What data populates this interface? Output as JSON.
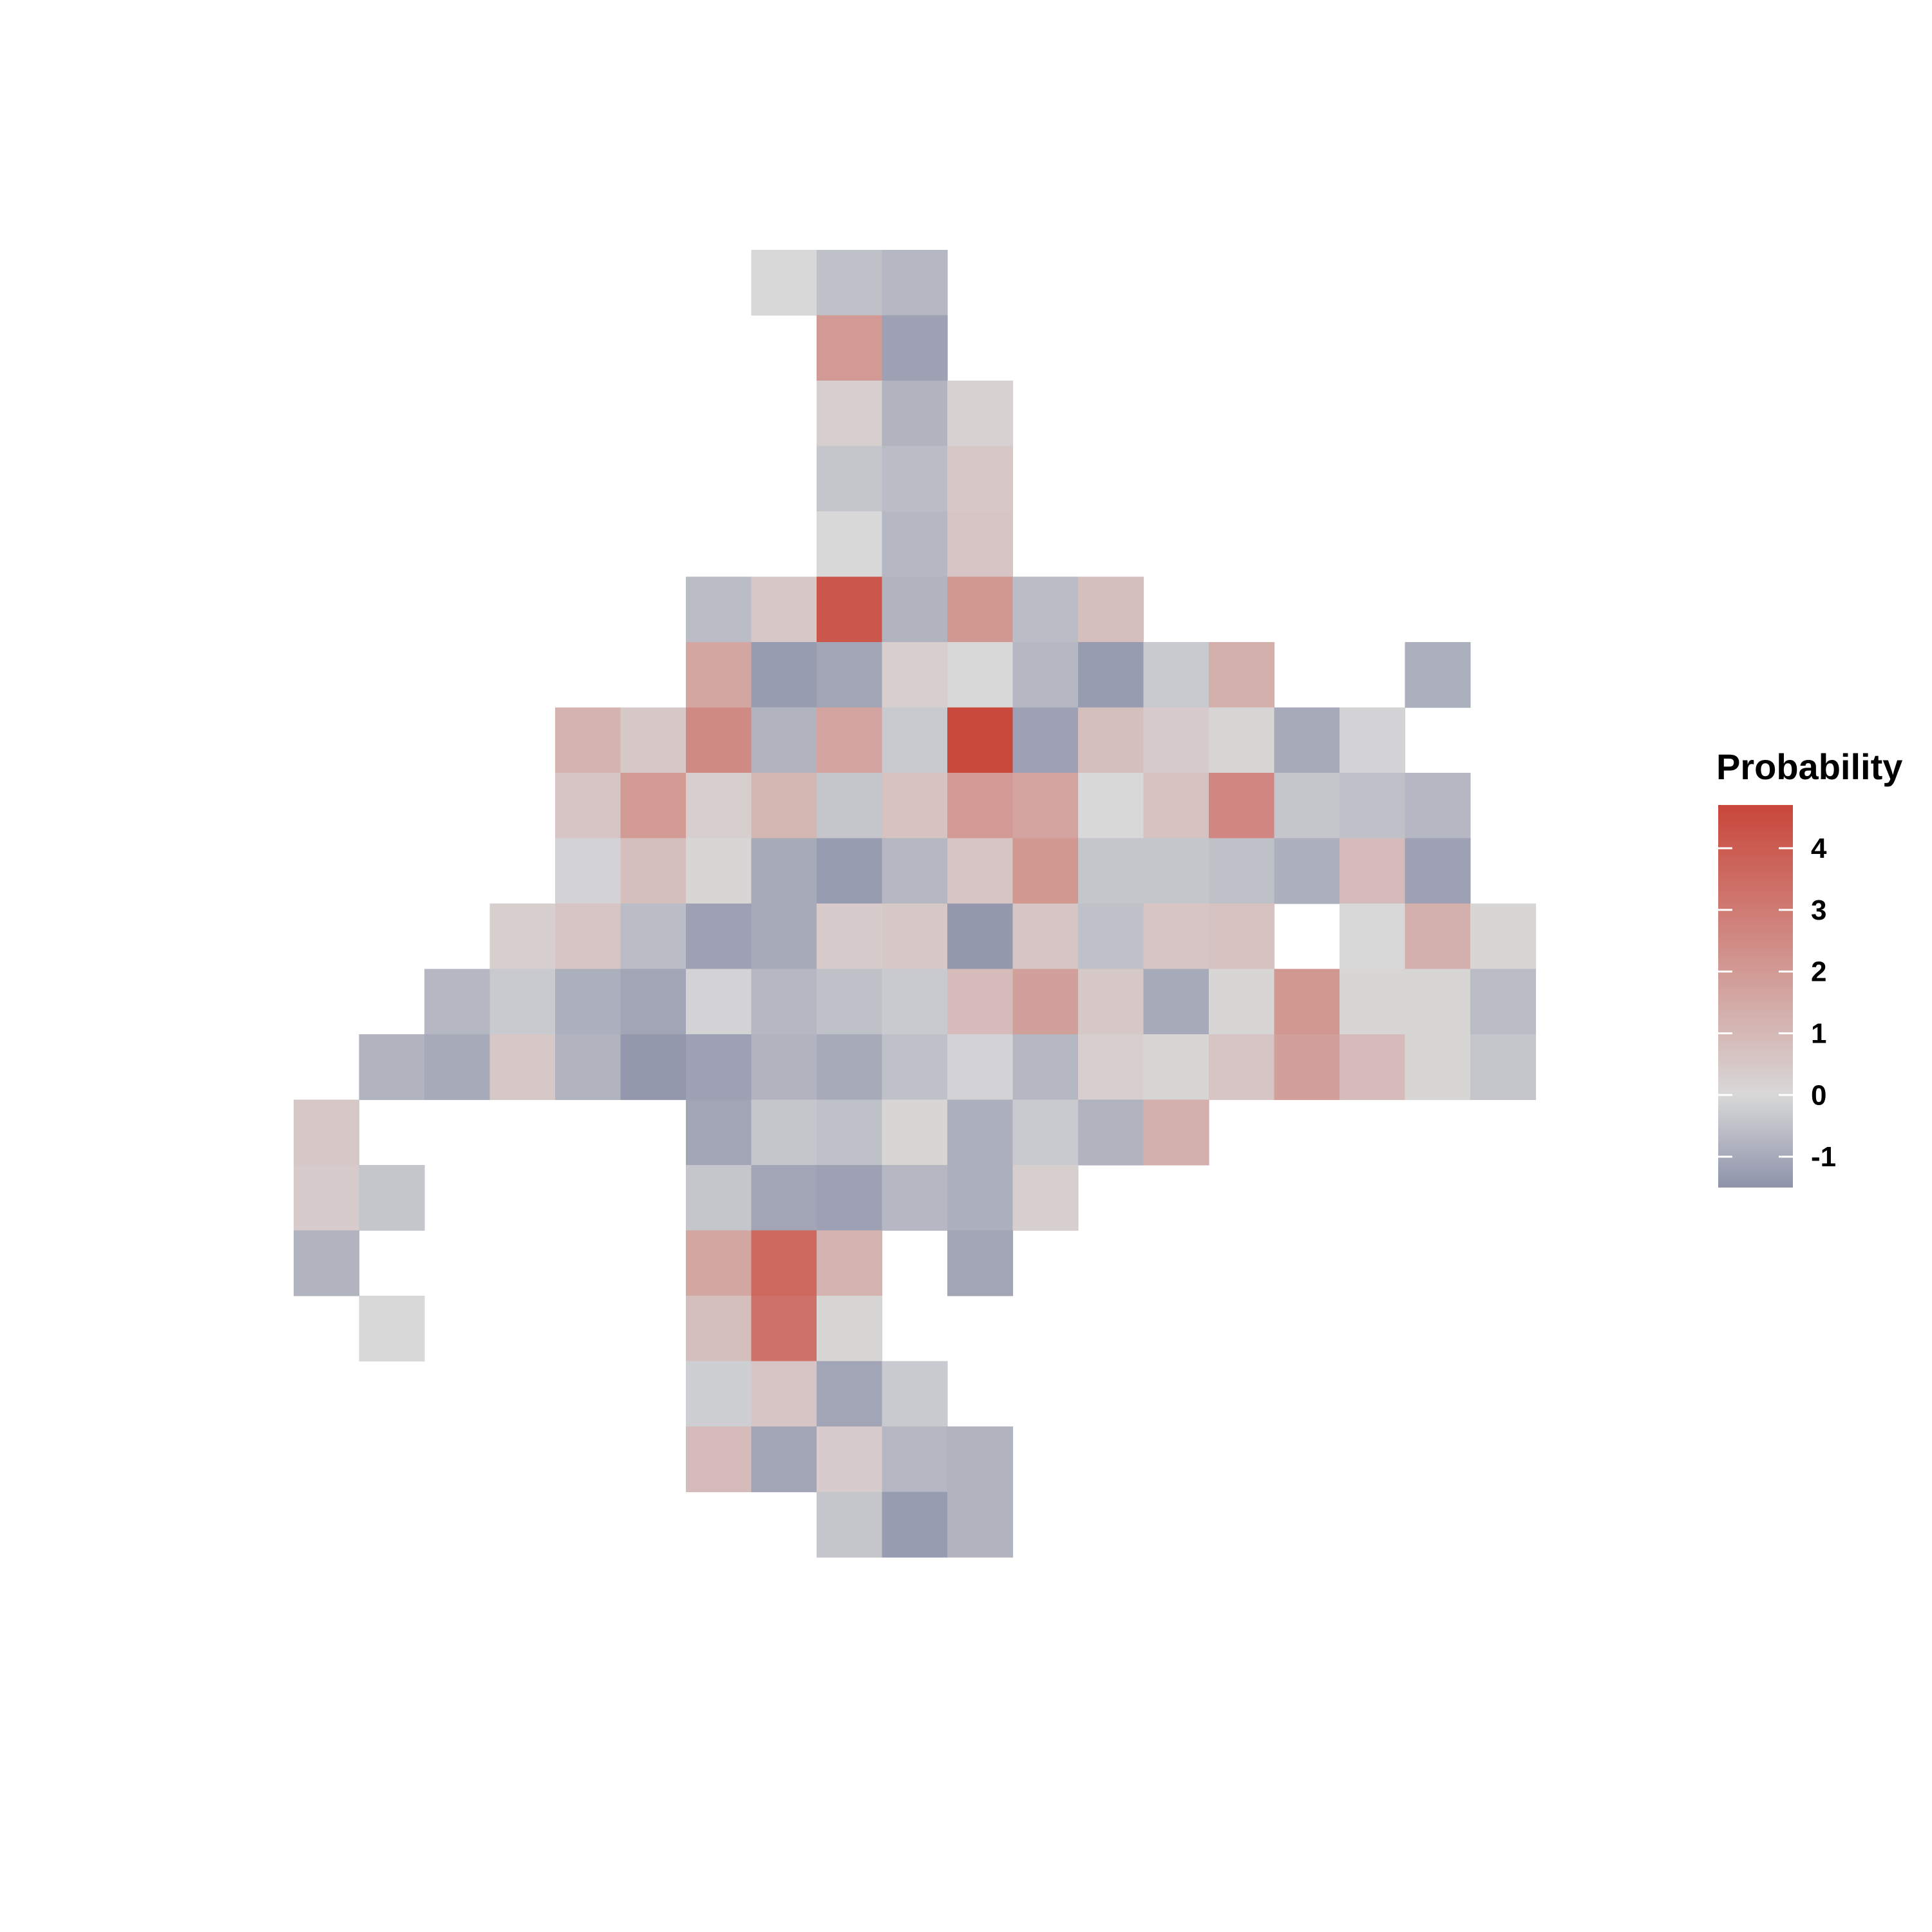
{
  "chart_data": {
    "type": "heatmap",
    "title": "",
    "xlabel": "",
    "ylabel": "",
    "grid": false,
    "legend_placement": "right",
    "n_cols": 20,
    "n_rows": 20,
    "legend": {
      "title": "Probability",
      "ticks": [
        4,
        3,
        2,
        1,
        0,
        -1
      ],
      "tick_labels": [
        "4",
        "3",
        "2",
        "1",
        "0",
        "-1"
      ],
      "min": -1.5,
      "max": 4.7
    },
    "colors": {
      "low": "#8e93aa",
      "mid": "#d8d8d8",
      "high": "#c9463a"
    },
    "cells": [
      {
        "row": 0,
        "col": 7,
        "value": 0.0
      },
      {
        "row": 0,
        "col": 8,
        "value": -0.5
      },
      {
        "row": 0,
        "col": 9,
        "value": -0.7
      },
      {
        "row": 1,
        "col": 8,
        "value": 2.0
      },
      {
        "row": 1,
        "col": 9,
        "value": -1.2
      },
      {
        "row": 2,
        "col": 8,
        "value": 0.3
      },
      {
        "row": 2,
        "col": 9,
        "value": -0.8
      },
      {
        "row": 2,
        "col": 10,
        "value": 0.2
      },
      {
        "row": 3,
        "col": 8,
        "value": -0.4
      },
      {
        "row": 3,
        "col": 9,
        "value": -0.6
      },
      {
        "row": 3,
        "col": 10,
        "value": 0.5
      },
      {
        "row": 4,
        "col": 8,
        "value": 0.0
      },
      {
        "row": 4,
        "col": 9,
        "value": -0.7
      },
      {
        "row": 4,
        "col": 10,
        "value": 0.6
      },
      {
        "row": 5,
        "col": 6,
        "value": -0.6
      },
      {
        "row": 5,
        "col": 7,
        "value": 0.5
      },
      {
        "row": 5,
        "col": 8,
        "value": 4.2
      },
      {
        "row": 5,
        "col": 9,
        "value": -0.8
      },
      {
        "row": 5,
        "col": 10,
        "value": 2.1
      },
      {
        "row": 5,
        "col": 11,
        "value": -0.6
      },
      {
        "row": 5,
        "col": 12,
        "value": 0.8
      },
      {
        "row": 6,
        "col": 6,
        "value": 1.6
      },
      {
        "row": 6,
        "col": 7,
        "value": -1.3
      },
      {
        "row": 6,
        "col": 8,
        "value": -1.1
      },
      {
        "row": 6,
        "col": 9,
        "value": 0.3
      },
      {
        "row": 6,
        "col": 10,
        "value": 0.0
      },
      {
        "row": 6,
        "col": 11,
        "value": -0.7
      },
      {
        "row": 6,
        "col": 12,
        "value": -1.3
      },
      {
        "row": 6,
        "col": 13,
        "value": -0.3
      },
      {
        "row": 6,
        "col": 14,
        "value": 1.3
      },
      {
        "row": 6,
        "col": 17,
        "value": -0.9
      },
      {
        "row": 7,
        "col": 4,
        "value": 1.2
      },
      {
        "row": 7,
        "col": 5,
        "value": 0.5
      },
      {
        "row": 7,
        "col": 6,
        "value": 2.5
      },
      {
        "row": 7,
        "col": 7,
        "value": -0.8
      },
      {
        "row": 7,
        "col": 8,
        "value": 1.7
      },
      {
        "row": 7,
        "col": 9,
        "value": -0.3
      },
      {
        "row": 7,
        "col": 10,
        "value": 4.6
      },
      {
        "row": 7,
        "col": 11,
        "value": -1.2
      },
      {
        "row": 7,
        "col": 12,
        "value": 0.8
      },
      {
        "row": 7,
        "col": 13,
        "value": 0.4
      },
      {
        "row": 7,
        "col": 14,
        "value": 0.1
      },
      {
        "row": 7,
        "col": 15,
        "value": -1.0
      },
      {
        "row": 7,
        "col": 16,
        "value": -0.1
      },
      {
        "row": 8,
        "col": 4,
        "value": 0.6
      },
      {
        "row": 8,
        "col": 5,
        "value": 2.0
      },
      {
        "row": 8,
        "col": 6,
        "value": 0.3
      },
      {
        "row": 8,
        "col": 7,
        "value": 1.1
      },
      {
        "row": 8,
        "col": 8,
        "value": -0.4
      },
      {
        "row": 8,
        "col": 9,
        "value": 0.7
      },
      {
        "row": 8,
        "col": 10,
        "value": 2.0
      },
      {
        "row": 8,
        "col": 11,
        "value": 1.7
      },
      {
        "row": 8,
        "col": 12,
        "value": 0.0
      },
      {
        "row": 8,
        "col": 13,
        "value": 0.7
      },
      {
        "row": 8,
        "col": 14,
        "value": 2.6
      },
      {
        "row": 8,
        "col": 15,
        "value": -0.4
      },
      {
        "row": 8,
        "col": 16,
        "value": -0.5
      },
      {
        "row": 8,
        "col": 17,
        "value": -0.7
      },
      {
        "row": 9,
        "col": 4,
        "value": -0.1
      },
      {
        "row": 9,
        "col": 5,
        "value": 0.8
      },
      {
        "row": 9,
        "col": 6,
        "value": 0.1
      },
      {
        "row": 9,
        "col": 7,
        "value": -1.0
      },
      {
        "row": 9,
        "col": 8,
        "value": -1.3
      },
      {
        "row": 9,
        "col": 9,
        "value": -0.7
      },
      {
        "row": 9,
        "col": 10,
        "value": 0.6
      },
      {
        "row": 9,
        "col": 11,
        "value": 2.1
      },
      {
        "row": 9,
        "col": 12,
        "value": -0.4
      },
      {
        "row": 9,
        "col": 13,
        "value": -0.4
      },
      {
        "row": 9,
        "col": 14,
        "value": -0.5
      },
      {
        "row": 9,
        "col": 15,
        "value": -0.9
      },
      {
        "row": 9,
        "col": 16,
        "value": 0.9
      },
      {
        "row": 9,
        "col": 17,
        "value": -1.2
      },
      {
        "row": 10,
        "col": 3,
        "value": 0.3
      },
      {
        "row": 10,
        "col": 4,
        "value": 0.6
      },
      {
        "row": 10,
        "col": 5,
        "value": -0.6
      },
      {
        "row": 10,
        "col": 6,
        "value": -1.2
      },
      {
        "row": 10,
        "col": 7,
        "value": -1.0
      },
      {
        "row": 10,
        "col": 8,
        "value": 0.4
      },
      {
        "row": 10,
        "col": 9,
        "value": 0.5
      },
      {
        "row": 10,
        "col": 10,
        "value": -1.4
      },
      {
        "row": 10,
        "col": 11,
        "value": 0.6
      },
      {
        "row": 10,
        "col": 12,
        "value": -0.5
      },
      {
        "row": 10,
        "col": 13,
        "value": 0.6
      },
      {
        "row": 10,
        "col": 14,
        "value": 0.7
      },
      {
        "row": 10,
        "col": 16,
        "value": 0.0
      },
      {
        "row": 10,
        "col": 17,
        "value": 1.3
      },
      {
        "row": 10,
        "col": 18,
        "value": 0.1
      },
      {
        "row": 11,
        "col": 2,
        "value": -0.7
      },
      {
        "row": 11,
        "col": 3,
        "value": -0.3
      },
      {
        "row": 11,
        "col": 4,
        "value": -0.9
      },
      {
        "row": 11,
        "col": 5,
        "value": -1.1
      },
      {
        "row": 11,
        "col": 6,
        "value": -0.1
      },
      {
        "row": 11,
        "col": 7,
        "value": -0.7
      },
      {
        "row": 11,
        "col": 8,
        "value": -0.5
      },
      {
        "row": 11,
        "col": 9,
        "value": -0.3
      },
      {
        "row": 11,
        "col": 10,
        "value": 0.9
      },
      {
        "row": 11,
        "col": 11,
        "value": 1.8
      },
      {
        "row": 11,
        "col": 12,
        "value": 0.5
      },
      {
        "row": 11,
        "col": 13,
        "value": -1.0
      },
      {
        "row": 11,
        "col": 14,
        "value": 0.1
      },
      {
        "row": 11,
        "col": 15,
        "value": 2.1
      },
      {
        "row": 11,
        "col": 16,
        "value": 0.1
      },
      {
        "row": 11,
        "col": 17,
        "value": 0.1
      },
      {
        "row": 11,
        "col": 18,
        "value": -0.6
      },
      {
        "row": 12,
        "col": 1,
        "value": -0.8
      },
      {
        "row": 12,
        "col": 2,
        "value": -1.0
      },
      {
        "row": 12,
        "col": 3,
        "value": 0.5
      },
      {
        "row": 12,
        "col": 4,
        "value": -0.8
      },
      {
        "row": 12,
        "col": 5,
        "value": -1.4
      },
      {
        "row": 12,
        "col": 6,
        "value": -1.2
      },
      {
        "row": 12,
        "col": 7,
        "value": -0.8
      },
      {
        "row": 12,
        "col": 8,
        "value": -1.0
      },
      {
        "row": 12,
        "col": 9,
        "value": -0.5
      },
      {
        "row": 12,
        "col": 10,
        "value": -0.1
      },
      {
        "row": 12,
        "col": 11,
        "value": -0.7
      },
      {
        "row": 12,
        "col": 12,
        "value": 0.3
      },
      {
        "row": 12,
        "col": 13,
        "value": 0.1
      },
      {
        "row": 12,
        "col": 14,
        "value": 0.6
      },
      {
        "row": 12,
        "col": 15,
        "value": 1.8
      },
      {
        "row": 12,
        "col": 16,
        "value": 0.9
      },
      {
        "row": 12,
        "col": 17,
        "value": 0.1
      },
      {
        "row": 12,
        "col": 18,
        "value": -0.4
      },
      {
        "row": 13,
        "col": 0,
        "value": 0.5
      },
      {
        "row": 13,
        "col": 6,
        "value": -1.1
      },
      {
        "row": 13,
        "col": 7,
        "value": -0.4
      },
      {
        "row": 13,
        "col": 8,
        "value": -0.5
      },
      {
        "row": 13,
        "col": 9,
        "value": 0.1
      },
      {
        "row": 13,
        "col": 10,
        "value": -0.9
      },
      {
        "row": 13,
        "col": 11,
        "value": -0.3
      },
      {
        "row": 13,
        "col": 12,
        "value": -0.8
      },
      {
        "row": 13,
        "col": 13,
        "value": 1.3
      },
      {
        "row": 14,
        "col": 0,
        "value": 0.4
      },
      {
        "row": 14,
        "col": 1,
        "value": -0.4
      },
      {
        "row": 14,
        "col": 6,
        "value": -0.4
      },
      {
        "row": 14,
        "col": 7,
        "value": -1.1
      },
      {
        "row": 14,
        "col": 8,
        "value": -1.2
      },
      {
        "row": 14,
        "col": 9,
        "value": -0.7
      },
      {
        "row": 14,
        "col": 10,
        "value": -0.9
      },
      {
        "row": 14,
        "col": 11,
        "value": 0.3
      },
      {
        "row": 15,
        "col": 0,
        "value": -0.8
      },
      {
        "row": 15,
        "col": 6,
        "value": 1.6
      },
      {
        "row": 15,
        "col": 7,
        "value": 3.6
      },
      {
        "row": 15,
        "col": 8,
        "value": 1.2
      },
      {
        "row": 15,
        "col": 10,
        "value": -1.1
      },
      {
        "row": 16,
        "col": 1,
        "value": 0.0
      },
      {
        "row": 16,
        "col": 6,
        "value": 0.8
      },
      {
        "row": 16,
        "col": 7,
        "value": 3.3
      },
      {
        "row": 16,
        "col": 8,
        "value": 0.1
      },
      {
        "row": 17,
        "col": 6,
        "value": -0.2
      },
      {
        "row": 17,
        "col": 7,
        "value": 0.6
      },
      {
        "row": 17,
        "col": 8,
        "value": -1.1
      },
      {
        "row": 17,
        "col": 9,
        "value": -0.3
      },
      {
        "row": 18,
        "col": 6,
        "value": 0.9
      },
      {
        "row": 18,
        "col": 7,
        "value": -1.1
      },
      {
        "row": 18,
        "col": 8,
        "value": 0.4
      },
      {
        "row": 18,
        "col": 9,
        "value": -0.7
      },
      {
        "row": 18,
        "col": 10,
        "value": -0.8
      },
      {
        "row": 19,
        "col": 8,
        "value": -0.4
      },
      {
        "row": 19,
        "col": 9,
        "value": -1.3
      },
      {
        "row": 19,
        "col": 10,
        "value": -0.8
      }
    ]
  }
}
